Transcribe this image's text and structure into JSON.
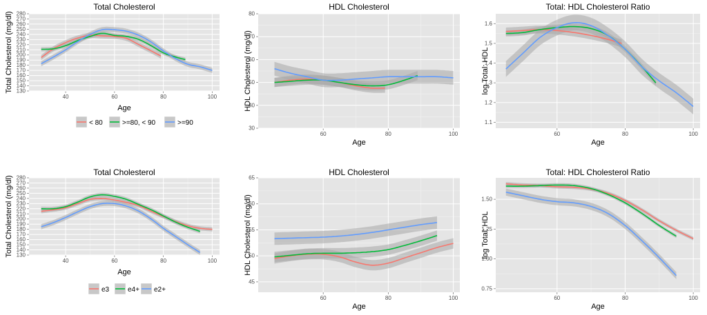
{
  "colors": {
    "red": "#F8766D",
    "green": "#00BA38",
    "blue": "#619CFF",
    "panel_bg": "#E5E5E5",
    "grid": "#FFFFFF",
    "ribbon": "#A8A8A8"
  },
  "legends": [
    {
      "entries": [
        {
          "label": "< 80",
          "color": "#F8766D"
        },
        {
          "label": ">=80, < 90",
          "color": "#00BA38"
        },
        {
          "label": ">=90",
          "color": "#619CFF"
        }
      ]
    },
    {
      "entries": [
        {
          "label": "e3",
          "color": "#F8766D"
        },
        {
          "label": "e4+",
          "color": "#00BA38"
        },
        {
          "label": "e2+",
          "color": "#619CFF"
        }
      ]
    }
  ],
  "chart_data": [
    {
      "type": "line",
      "title": "Total Cholesterol",
      "xlabel": "Age",
      "ylabel": "Total Cholesterol (mg/dl)",
      "xlim": [
        25,
        103
      ],
      "ylim": [
        130,
        280
      ],
      "xticks": [
        40,
        60,
        80,
        100
      ],
      "yticks": [
        130,
        140,
        150,
        160,
        170,
        180,
        190,
        200,
        210,
        220,
        230,
        240,
        250,
        260,
        270,
        280
      ],
      "series": [
        {
          "name": "< 80",
          "color": "#F8766D",
          "x": [
            30,
            35,
            40,
            45,
            50,
            55,
            60,
            65,
            70,
            75,
            79
          ],
          "y": [
            195,
            212,
            224,
            233,
            238,
            237,
            236,
            232,
            220,
            208,
            198
          ],
          "band": 5
        },
        {
          "name": ">=80, < 90",
          "color": "#00BA38",
          "x": [
            30,
            35,
            40,
            45,
            50,
            55,
            60,
            65,
            70,
            75,
            80,
            85,
            89
          ],
          "y": [
            211,
            212,
            218,
            228,
            236,
            242,
            238,
            236,
            230,
            218,
            204,
            196,
            191
          ],
          "band": 4
        },
        {
          "name": ">=90",
          "color": "#619CFF",
          "x": [
            30,
            35,
            40,
            45,
            50,
            55,
            60,
            65,
            70,
            75,
            80,
            85,
            90,
            95,
            100
          ],
          "y": [
            183,
            196,
            210,
            226,
            240,
            249,
            249,
            246,
            238,
            225,
            208,
            193,
            182,
            177,
            170
          ],
          "band": 5
        }
      ]
    },
    {
      "type": "line",
      "title": "HDL Cholesterol",
      "xlabel": "Age",
      "ylabel": "HDL Cholesterol (mg/dl)",
      "xlim": [
        40,
        102
      ],
      "ylim": [
        30,
        80
      ],
      "xticks": [
        60,
        80,
        100
      ],
      "yticks": [
        30,
        40,
        50,
        60,
        70,
        80
      ],
      "series": [
        {
          "name": "< 80",
          "color": "#F8766D",
          "x": [
            45,
            50,
            55,
            60,
            65,
            70,
            75,
            79
          ],
          "y": [
            50,
            51,
            51.5,
            51,
            50,
            48.5,
            47.5,
            47.5
          ],
          "band": 2
        },
        {
          "name": ">=80, < 90",
          "color": "#00BA38",
          "x": [
            45,
            50,
            55,
            60,
            65,
            70,
            75,
            80,
            85,
            89
          ],
          "y": [
            50,
            50.5,
            51,
            51,
            50,
            49,
            48.5,
            49,
            51,
            53
          ],
          "band": 2
        },
        {
          "name": ">=90",
          "color": "#619CFF",
          "x": [
            45,
            50,
            55,
            60,
            65,
            70,
            75,
            80,
            85,
            90,
            95,
            100
          ],
          "y": [
            56,
            54,
            52.5,
            51,
            51,
            51.5,
            52,
            52.5,
            52.5,
            52.5,
            52.5,
            52
          ],
          "band": 3
        }
      ]
    },
    {
      "type": "line",
      "title": "Total: HDL Cholesterol Ratio",
      "xlabel": "Age",
      "ylabel": "log Total: HDL",
      "xlim": [
        42,
        102
      ],
      "ylim": [
        1.07,
        1.65
      ],
      "xticks": [
        60,
        80,
        100
      ],
      "yticks": [
        1.1,
        1.2,
        1.3,
        1.4,
        1.5,
        1.6
      ],
      "series": [
        {
          "name": "< 80",
          "color": "#F8766D",
          "x": [
            45,
            50,
            55,
            60,
            65,
            70,
            75,
            79
          ],
          "y": [
            1.56,
            1.565,
            1.57,
            1.565,
            1.555,
            1.54,
            1.52,
            1.5
          ],
          "band": 0.02
        },
        {
          "name": ">=80, < 90",
          "color": "#00BA38",
          "x": [
            45,
            50,
            55,
            60,
            65,
            70,
            75,
            80,
            85,
            89
          ],
          "y": [
            1.55,
            1.555,
            1.57,
            1.58,
            1.585,
            1.575,
            1.54,
            1.47,
            1.38,
            1.3
          ],
          "band": 0.015
        },
        {
          "name": ">=90",
          "color": "#619CFF",
          "x": [
            45,
            50,
            55,
            60,
            65,
            70,
            75,
            80,
            85,
            90,
            95,
            100
          ],
          "y": [
            1.37,
            1.45,
            1.53,
            1.58,
            1.605,
            1.59,
            1.54,
            1.47,
            1.38,
            1.31,
            1.25,
            1.18
          ],
          "band": 0.04
        }
      ]
    },
    {
      "type": "line",
      "title": "Total Cholesterol",
      "xlabel": "Age",
      "ylabel": "Total Cholesterol (mg/dl)",
      "xlim": [
        25,
        103
      ],
      "ylim": [
        130,
        280
      ],
      "xticks": [
        40,
        60,
        80,
        100
      ],
      "yticks": [
        130,
        140,
        150,
        160,
        170,
        180,
        190,
        200,
        210,
        220,
        230,
        240,
        250,
        260,
        270,
        280
      ],
      "series": [
        {
          "name": "e3",
          "color": "#F8766D",
          "x": [
            30,
            35,
            40,
            45,
            50,
            55,
            60,
            65,
            70,
            75,
            80,
            85,
            90,
            95,
            100
          ],
          "y": [
            215,
            218,
            222,
            230,
            238,
            240,
            237,
            232,
            226,
            215,
            205,
            195,
            187,
            182,
            180
          ],
          "band": 4
        },
        {
          "name": "e4+",
          "color": "#00BA38",
          "x": [
            30,
            35,
            40,
            45,
            50,
            55,
            60,
            65,
            70,
            75,
            80,
            85,
            90,
            95
          ],
          "y": [
            220,
            220,
            224,
            233,
            243,
            247,
            244,
            238,
            228,
            218,
            206,
            194,
            184,
            176
          ],
          "band": 4
        },
        {
          "name": "e2+",
          "color": "#619CFF",
          "x": [
            30,
            35,
            40,
            45,
            50,
            55,
            60,
            65,
            70,
            75,
            80,
            85,
            90,
            95
          ],
          "y": [
            185,
            193,
            203,
            214,
            224,
            230,
            230,
            225,
            215,
            200,
            182,
            166,
            150,
            135
          ],
          "band": 5
        }
      ]
    },
    {
      "type": "line",
      "title": "HDL Cholesterol",
      "xlabel": "Age",
      "ylabel": "HDL Cholesterol (mg/dl)",
      "xlim": [
        40,
        102
      ],
      "ylim": [
        43,
        65
      ],
      "xticks": [
        60,
        80,
        100
      ],
      "yticks": [
        45,
        50,
        55,
        60,
        65
      ],
      "series": [
        {
          "name": "e3",
          "color": "#F8766D",
          "x": [
            45,
            50,
            55,
            60,
            65,
            70,
            75,
            80,
            85,
            90,
            95,
            100
          ],
          "y": [
            49.5,
            50,
            50.3,
            50.3,
            49.8,
            48.8,
            48.2,
            48.6,
            49.6,
            50.6,
            51.6,
            52.4
          ],
          "band": 1
        },
        {
          "name": "e4+",
          "color": "#00BA38",
          "x": [
            45,
            50,
            55,
            60,
            65,
            70,
            75,
            80,
            85,
            90,
            95
          ],
          "y": [
            49.8,
            50.1,
            50.4,
            50.5,
            50.5,
            50.6,
            50.8,
            51.2,
            52,
            52.9,
            53.9
          ],
          "band": 1
        },
        {
          "name": "e2+",
          "color": "#619CFF",
          "x": [
            45,
            50,
            55,
            60,
            65,
            70,
            75,
            80,
            85,
            90,
            95
          ],
          "y": [
            53.3,
            53.4,
            53.5,
            53.6,
            53.8,
            54.1,
            54.5,
            55,
            55.5,
            56,
            56.4
          ],
          "band": 1.2
        }
      ]
    },
    {
      "type": "line",
      "title": "Total: HDL Cholesterol Ratio",
      "xlabel": "Age",
      "ylabel": "log Total: HDL",
      "xlim": [
        42,
        102
      ],
      "ylim": [
        0.72,
        1.68
      ],
      "xticks": [
        60,
        80,
        100
      ],
      "yticks": [
        0.75,
        1.0,
        1.25,
        1.5
      ],
      "ytick_labels": [
        "0.75",
        "1.00",
        "1.25",
        "1.50"
      ],
      "series": [
        {
          "name": "e3",
          "color": "#F8766D",
          "x": [
            45,
            50,
            55,
            60,
            65,
            70,
            75,
            80,
            85,
            90,
            95,
            100
          ],
          "y": [
            1.63,
            1.62,
            1.615,
            1.605,
            1.6,
            1.585,
            1.55,
            1.49,
            1.41,
            1.32,
            1.24,
            1.17
          ],
          "band": 0.015
        },
        {
          "name": "e4+",
          "color": "#00BA38",
          "x": [
            45,
            50,
            55,
            60,
            65,
            70,
            75,
            80,
            85,
            90,
            95
          ],
          "y": [
            1.61,
            1.61,
            1.615,
            1.62,
            1.615,
            1.59,
            1.54,
            1.47,
            1.38,
            1.28,
            1.19
          ],
          "band": 0.015
        },
        {
          "name": "e2+",
          "color": "#619CFF",
          "x": [
            45,
            50,
            55,
            60,
            65,
            70,
            75,
            80,
            85,
            90,
            95
          ],
          "y": [
            1.56,
            1.53,
            1.5,
            1.48,
            1.47,
            1.44,
            1.38,
            1.28,
            1.15,
            1.01,
            0.86
          ],
          "band": 0.03
        }
      ]
    }
  ]
}
